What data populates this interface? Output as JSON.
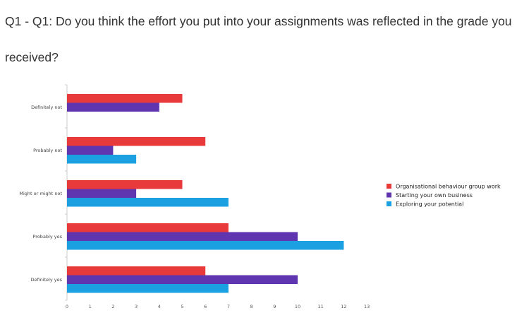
{
  "title": "Q1 - Q1: Do you think the effort you put into your assignments was reflected in the grade you received?",
  "chart_data": {
    "type": "bar",
    "orientation": "horizontal",
    "categories": [
      "Definitely not",
      "Probably not",
      "Might or might not",
      "Probably yes",
      "Definitely yes"
    ],
    "series": [
      {
        "name": "Organisational behaviour group work",
        "color": "#e8393b",
        "values": [
          5,
          6,
          5,
          7,
          6
        ]
      },
      {
        "name": "Starting your own business",
        "color": "#5f35b0",
        "values": [
          4,
          2,
          3,
          10,
          10
        ]
      },
      {
        "name": "Exploring your potential",
        "color": "#1ba1e2",
        "values": [
          0,
          3,
          7,
          12,
          7
        ]
      }
    ],
    "xlim": [
      0,
      13
    ],
    "xticks": [
      "0",
      "1",
      "2",
      "3",
      "4",
      "5",
      "6",
      "7",
      "8",
      "9",
      "10",
      "11",
      "12",
      "13"
    ],
    "grid": false,
    "legend_position": "right"
  }
}
